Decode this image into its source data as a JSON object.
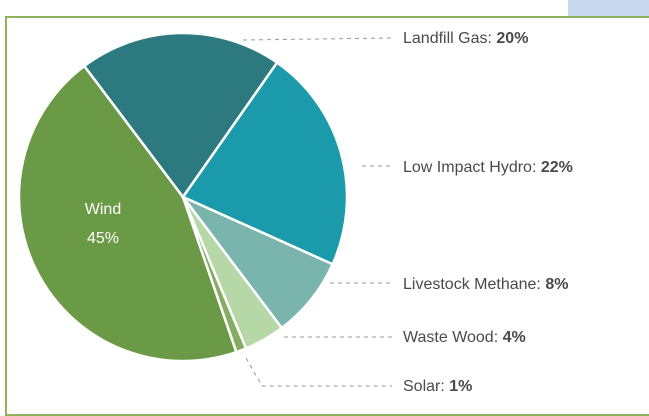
{
  "chart_data": {
    "type": "pie",
    "title": "",
    "slices": [
      {
        "label": "Wind",
        "value": 45,
        "display": "45%",
        "color": "#6a9a45"
      },
      {
        "label": "Landfill Gas",
        "value": 20,
        "display": "20%",
        "color": "#2c7a80"
      },
      {
        "label": "Low Impact Hydro",
        "value": 22,
        "display": "22%",
        "color": "#1a9aaa"
      },
      {
        "label": "Livestock Methane",
        "value": 8,
        "display": "8%",
        "color": "#7ab5ad"
      },
      {
        "label": "Waste Wood",
        "value": 4,
        "display": "4%",
        "color": "#b6d7a6"
      },
      {
        "label": "Solar",
        "value": 1,
        "display": "1%",
        "color": "#86ac64"
      }
    ],
    "callouts": [
      {
        "name": "Landfill Gas:",
        "value": "20%"
      },
      {
        "name": "Low Impact Hydro:",
        "value": "22%"
      },
      {
        "name": "Livestock Methane:",
        "value": "8%"
      },
      {
        "name": "Waste Wood:",
        "value": "4%"
      },
      {
        "name": "Solar:",
        "value": "1%"
      }
    ],
    "legend": "callout labels right"
  }
}
